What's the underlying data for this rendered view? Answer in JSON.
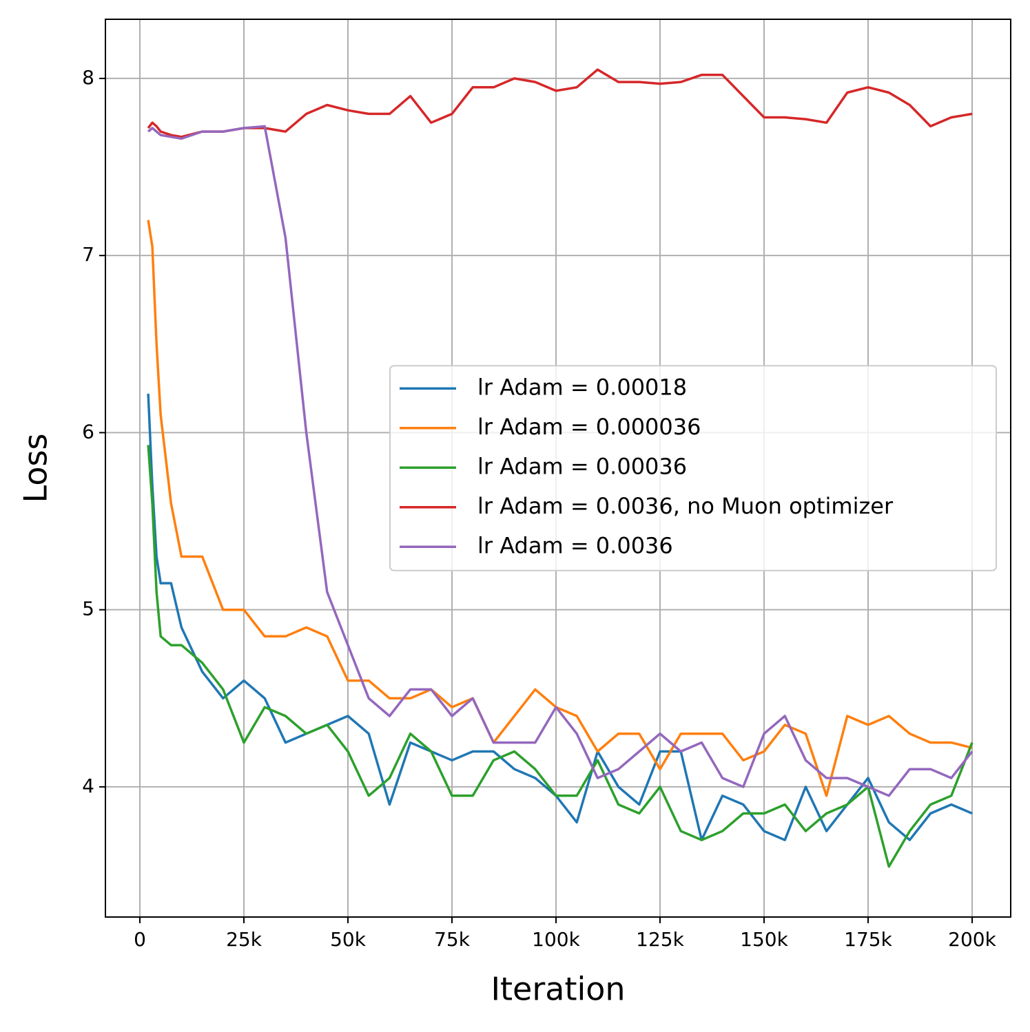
{
  "chart_data": {
    "type": "line",
    "xlabel": "Iteration",
    "ylabel": "Loss",
    "x": [
      2000,
      3000,
      4000,
      5000,
      7500,
      10000,
      15000,
      20000,
      25000,
      30000,
      35000,
      40000,
      45000,
      50000,
      55000,
      60000,
      65000,
      70000,
      75000,
      80000,
      85000,
      90000,
      95000,
      100000,
      105000,
      110000,
      115000,
      120000,
      125000,
      130000,
      135000,
      140000,
      145000,
      150000,
      155000,
      160000,
      165000,
      170000,
      175000,
      180000,
      185000,
      190000,
      195000,
      200000
    ],
    "series": [
      {
        "name": "lr Adam = 0.00018",
        "color": "#1f77b4",
        "values": [
          6.22,
          5.7,
          5.3,
          5.15,
          5.15,
          4.9,
          4.65,
          4.5,
          4.6,
          4.5,
          4.25,
          4.3,
          4.35,
          4.4,
          4.3,
          3.9,
          4.25,
          4.2,
          4.15,
          4.2,
          4.2,
          4.1,
          4.05,
          3.95,
          3.8,
          4.2,
          4.0,
          3.9,
          4.2,
          4.2,
          3.7,
          3.95,
          3.9,
          3.75,
          3.7,
          4.0,
          3.75,
          3.9,
          4.05,
          3.8,
          3.7,
          3.85,
          3.9,
          3.85
        ]
      },
      {
        "name": "lr Adam = 0.000036",
        "color": "#ff7f0e",
        "values": [
          7.2,
          7.05,
          6.5,
          6.1,
          5.6,
          5.3,
          5.3,
          5.0,
          5.0,
          4.85,
          4.85,
          4.9,
          4.85,
          4.6,
          4.6,
          4.5,
          4.5,
          4.55,
          4.45,
          4.5,
          4.25,
          4.4,
          4.55,
          4.45,
          4.4,
          4.2,
          4.3,
          4.3,
          4.1,
          4.3,
          4.3,
          4.3,
          4.15,
          4.2,
          4.35,
          4.3,
          3.95,
          4.4,
          4.35,
          4.4,
          4.3,
          4.25,
          4.25,
          4.22
        ]
      },
      {
        "name": "lr Adam = 0.00036",
        "color": "#2ca02c",
        "values": [
          5.93,
          5.6,
          5.1,
          4.85,
          4.8,
          4.8,
          4.7,
          4.55,
          4.25,
          4.45,
          4.4,
          4.3,
          4.35,
          4.2,
          3.95,
          4.05,
          4.3,
          4.2,
          3.95,
          3.95,
          4.15,
          4.2,
          4.1,
          3.95,
          3.95,
          4.15,
          3.9,
          3.85,
          4.0,
          3.75,
          3.7,
          3.75,
          3.85,
          3.85,
          3.9,
          3.75,
          3.85,
          3.9,
          4.0,
          3.55,
          3.75,
          3.9,
          3.95,
          4.25
        ]
      },
      {
        "name": "lr Adam = 0.0036, no Muon optimizer",
        "color": "#d62728",
        "values": [
          7.72,
          7.75,
          7.73,
          7.7,
          7.68,
          7.67,
          7.7,
          7.7,
          7.72,
          7.72,
          7.7,
          7.8,
          7.85,
          7.82,
          7.8,
          7.8,
          7.9,
          7.75,
          7.8,
          7.95,
          7.95,
          8.0,
          7.98,
          7.93,
          7.95,
          8.05,
          7.98,
          7.98,
          7.97,
          7.98,
          8.02,
          8.02,
          7.9,
          7.78,
          7.78,
          7.77,
          7.75,
          7.92,
          7.95,
          7.92,
          7.85,
          7.73,
          7.78,
          7.8
        ]
      },
      {
        "name": "lr Adam = 0.0036",
        "color": "#9467bd",
        "values": [
          7.7,
          7.72,
          7.7,
          7.68,
          7.67,
          7.66,
          7.7,
          7.7,
          7.72,
          7.73,
          7.1,
          6.0,
          5.1,
          4.8,
          4.5,
          4.4,
          4.55,
          4.55,
          4.4,
          4.5,
          4.25,
          4.25,
          4.25,
          4.45,
          4.3,
          4.05,
          4.1,
          4.2,
          4.3,
          4.2,
          4.25,
          4.05,
          4.0,
          4.3,
          4.4,
          4.15,
          4.05,
          4.05,
          4.0,
          3.95,
          4.1,
          4.1,
          4.05,
          4.2
        ]
      }
    ],
    "xlim": [
      -8280,
      209270
    ],
    "xticks": [
      0,
      {
        "value": 25000,
        "label": "25k"
      },
      {
        "value": 50000,
        "label": "50k"
      },
      {
        "value": 75000,
        "label": "75k"
      },
      {
        "value": 100000,
        "label": "100k"
      },
      {
        "value": 125000,
        "label": "125k"
      },
      {
        "value": 150000,
        "label": "150k"
      },
      {
        "value": 175000,
        "label": "175k"
      },
      {
        "value": 200000,
        "label": "200k"
      }
    ],
    "ylim": [
      3.265,
      8.334
    ],
    "yticks": [
      4,
      5,
      6,
      7,
      8
    ],
    "grid": true,
    "legend": "center right"
  }
}
